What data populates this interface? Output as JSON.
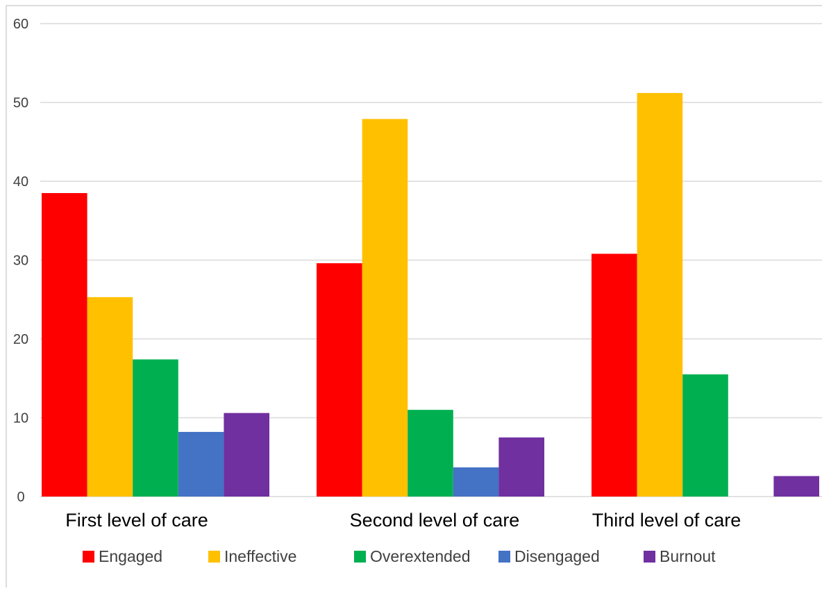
{
  "chart_data": {
    "type": "bar",
    "categories": [
      "First level of care",
      "Second level of care",
      "Third level of care"
    ],
    "series": [
      {
        "name": "Engaged",
        "color": "#ff0000",
        "values": [
          38.5,
          29.6,
          30.8
        ]
      },
      {
        "name": "Ineffective",
        "color": "#ffc000",
        "values": [
          25.3,
          47.9,
          51.2
        ]
      },
      {
        "name": "Overextended",
        "color": "#00b050",
        "values": [
          17.4,
          11.0,
          15.5
        ]
      },
      {
        "name": "Disengaged",
        "color": "#4472c4",
        "values": [
          8.2,
          3.7,
          0
        ]
      },
      {
        "name": "Burnout",
        "color": "#7030a0",
        "values": [
          10.6,
          7.5,
          2.6
        ]
      }
    ],
    "ylim": [
      0,
      60
    ],
    "yticks": [
      0,
      10,
      20,
      30,
      40,
      50,
      60
    ],
    "grid": true,
    "legend": "bottom"
  }
}
